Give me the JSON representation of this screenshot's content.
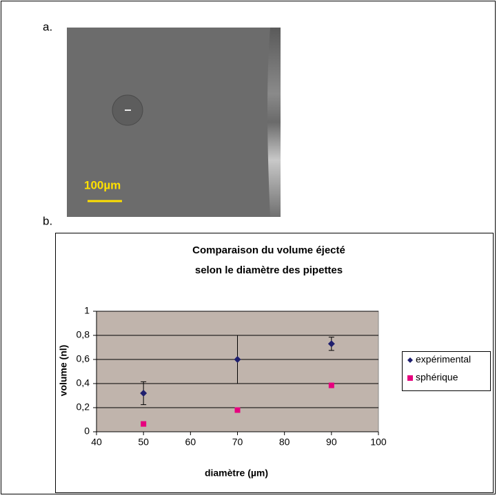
{
  "panel_a": {
    "label": "a.",
    "scale_bar": "100µm"
  },
  "panel_b": {
    "label": "b."
  },
  "chart_data": {
    "type": "scatter",
    "title": [
      "Comparaison du volume éjecté",
      "selon le diamètre des pipettes"
    ],
    "x_label": "diamètre (µm)",
    "y_label": "volume (nl)",
    "x": [
      50,
      70,
      90
    ],
    "series": [
      {
        "name": "expérimental",
        "color": "#1f1f6e",
        "marker": "diamond",
        "values": [
          0.32,
          0.6,
          0.73
        ],
        "errors": [
          0.095,
          0.2,
          0.055
        ]
      },
      {
        "name": "sphérique",
        "color": "#e6007e",
        "marker": "square",
        "values": [
          0.065,
          0.18,
          0.385
        ]
      }
    ],
    "xlim": [
      40,
      100
    ],
    "xticks": [
      40,
      50,
      60,
      70,
      80,
      90,
      100
    ],
    "ylim": [
      0,
      1
    ],
    "yticks": [
      0,
      {
        "value": 0.2,
        "label": "0,2"
      },
      {
        "value": 0.4,
        "label": "0,4"
      },
      {
        "value": 0.6,
        "label": "0,6"
      },
      {
        "value": 0.8,
        "label": "0,8"
      },
      1
    ],
    "grid": true,
    "plot_background": "#c0b4ac",
    "legend": "right"
  }
}
